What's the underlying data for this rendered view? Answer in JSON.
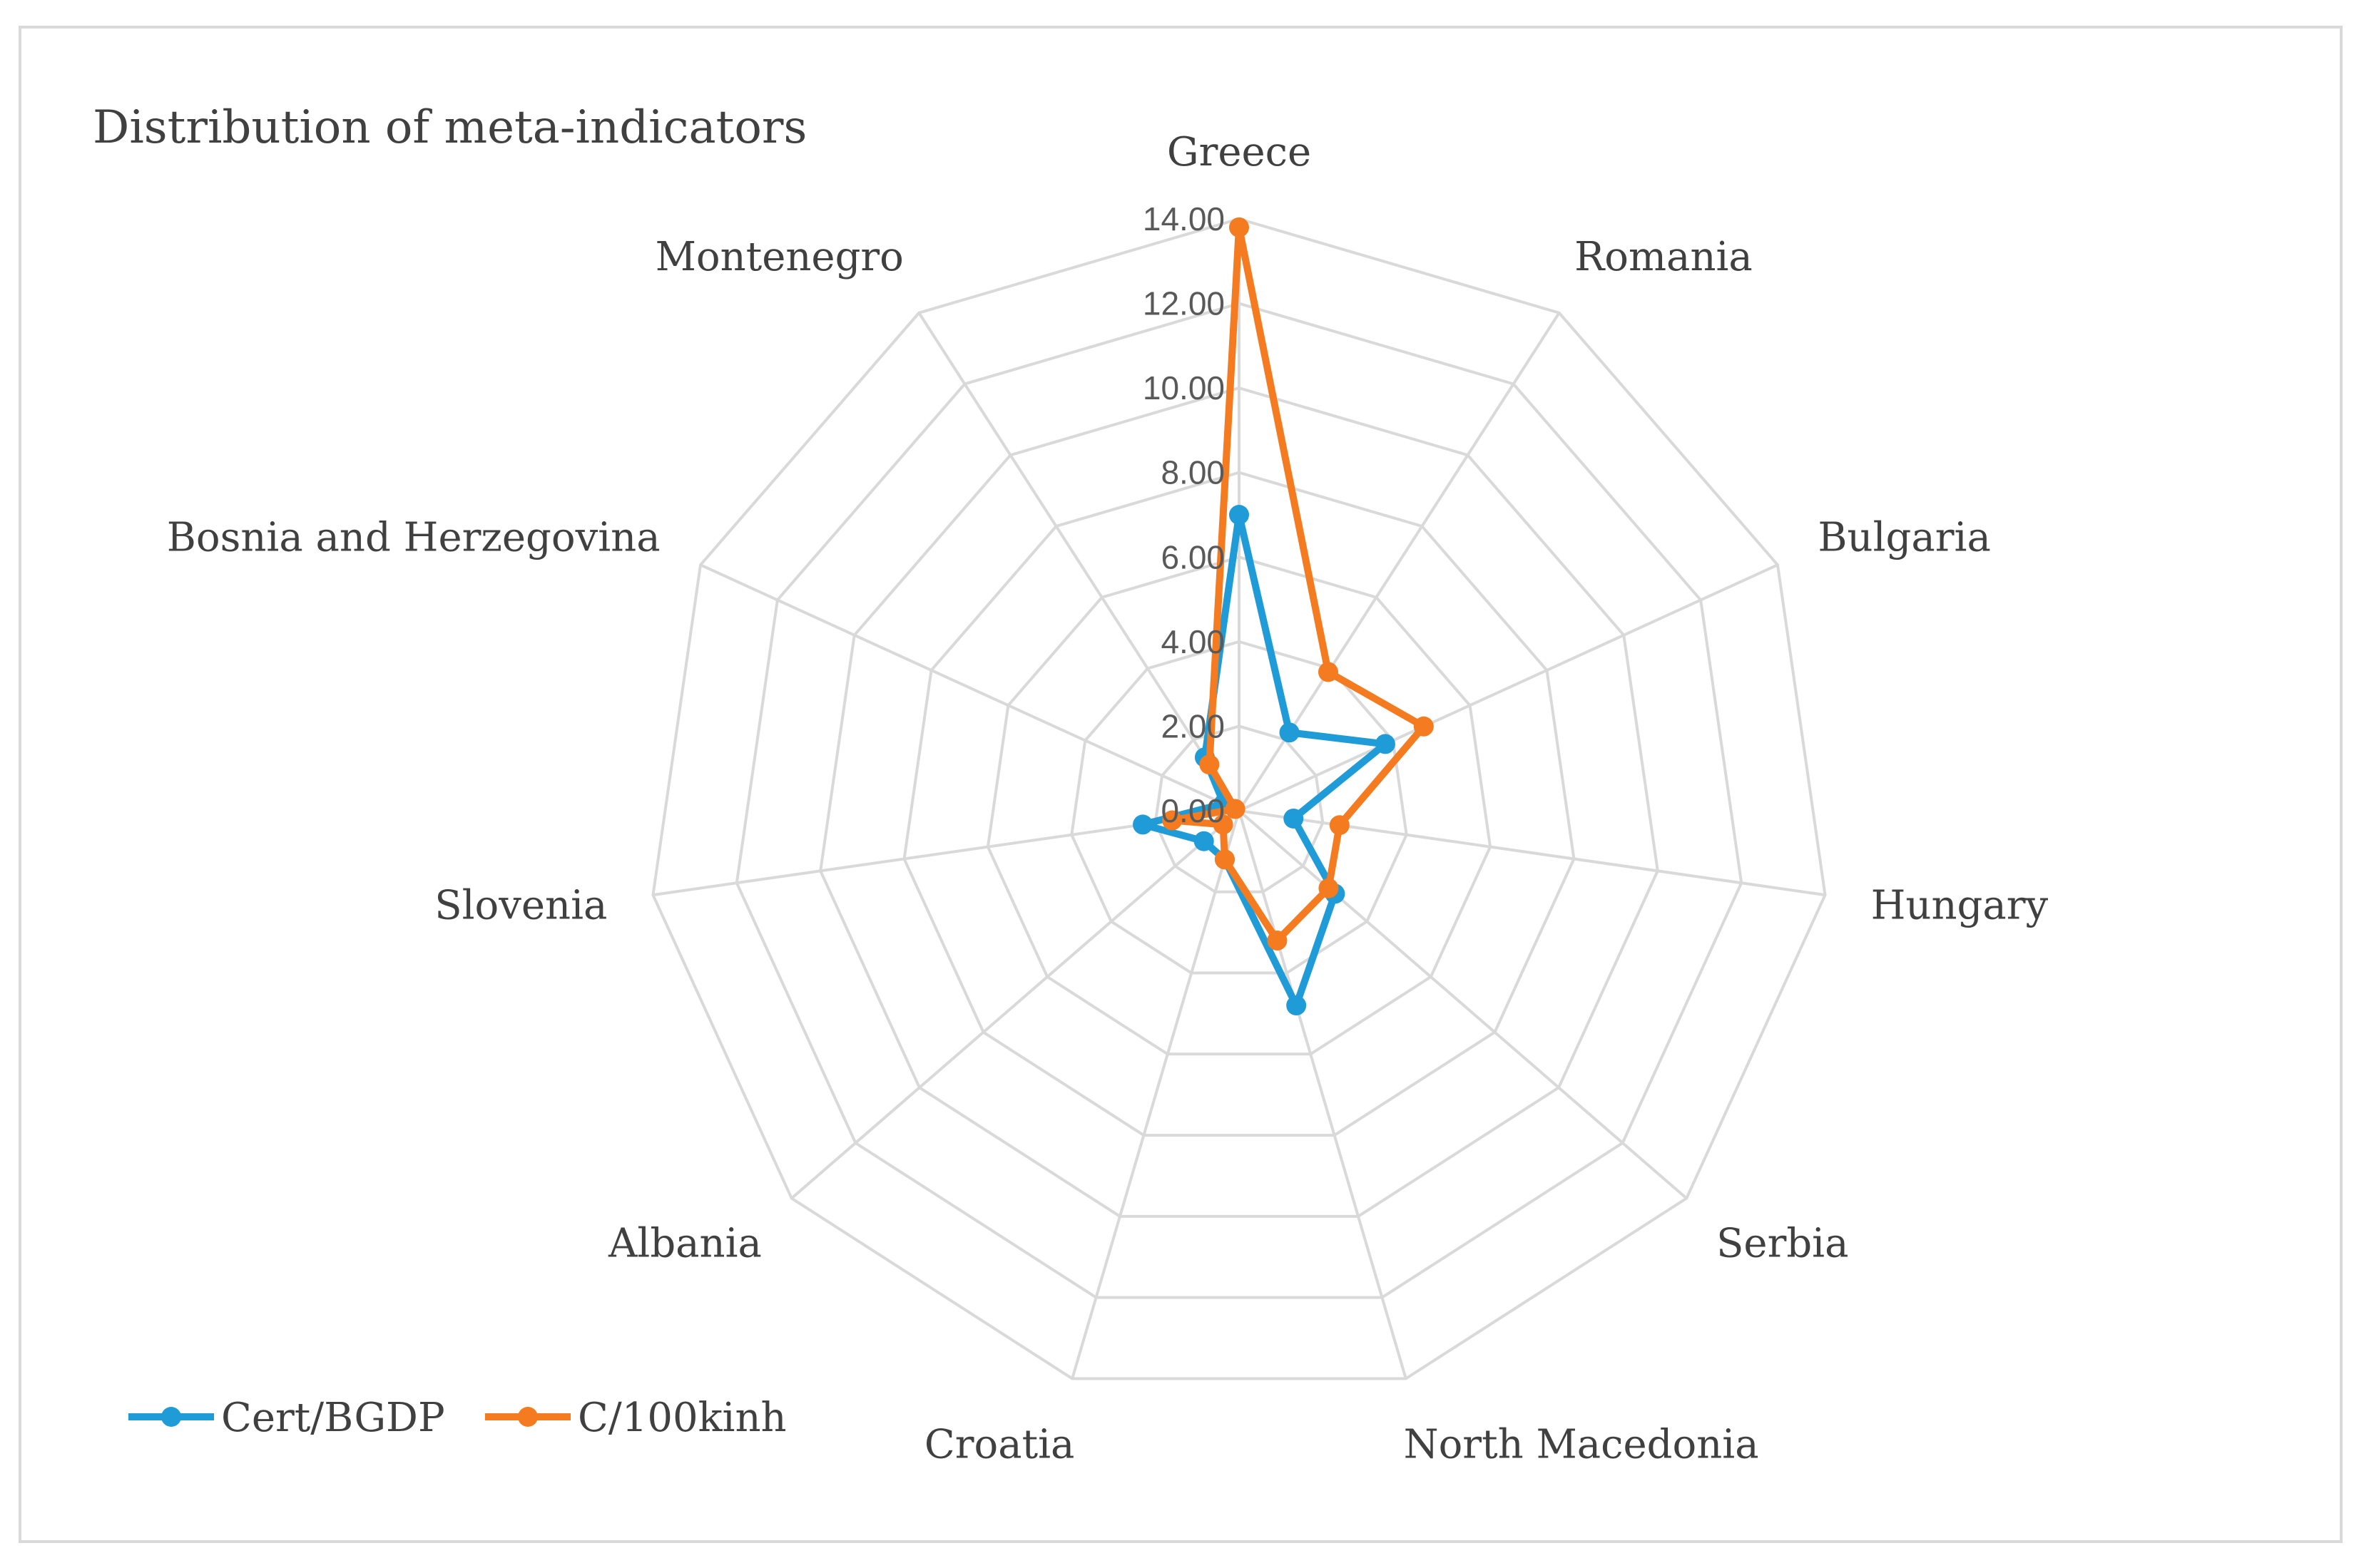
{
  "chart_data": {
    "type": "radar",
    "title": "Distribution of meta-indicators",
    "categories": [
      "Greece",
      "Romania",
      "Bulgaria",
      "Hungary",
      "Serbia",
      "North Macedonia",
      "Croatia",
      "Albania",
      "Slovenia",
      "Bosnia and Herzegovina",
      "Montenegro"
    ],
    "series": [
      {
        "name": "Cert/BGDP",
        "color": "#1f9bd7",
        "values": [
          7.0,
          2.2,
          3.8,
          1.3,
          3.0,
          4.8,
          1.2,
          1.1,
          2.3,
          0.4,
          1.5
        ]
      },
      {
        "name": "C/100kinh",
        "color": "#f47b20",
        "values": [
          13.8,
          3.9,
          4.8,
          2.4,
          2.8,
          3.2,
          1.2,
          0.5,
          1.6,
          0.1,
          1.3
        ]
      }
    ],
    "rlim": [
      0,
      14
    ],
    "ticks": [
      "0.00",
      "2.00",
      "4.00",
      "6.00",
      "8.00",
      "10.00",
      "12.00",
      "14.00"
    ],
    "grid": true,
    "legend_position": "bottom-left"
  }
}
